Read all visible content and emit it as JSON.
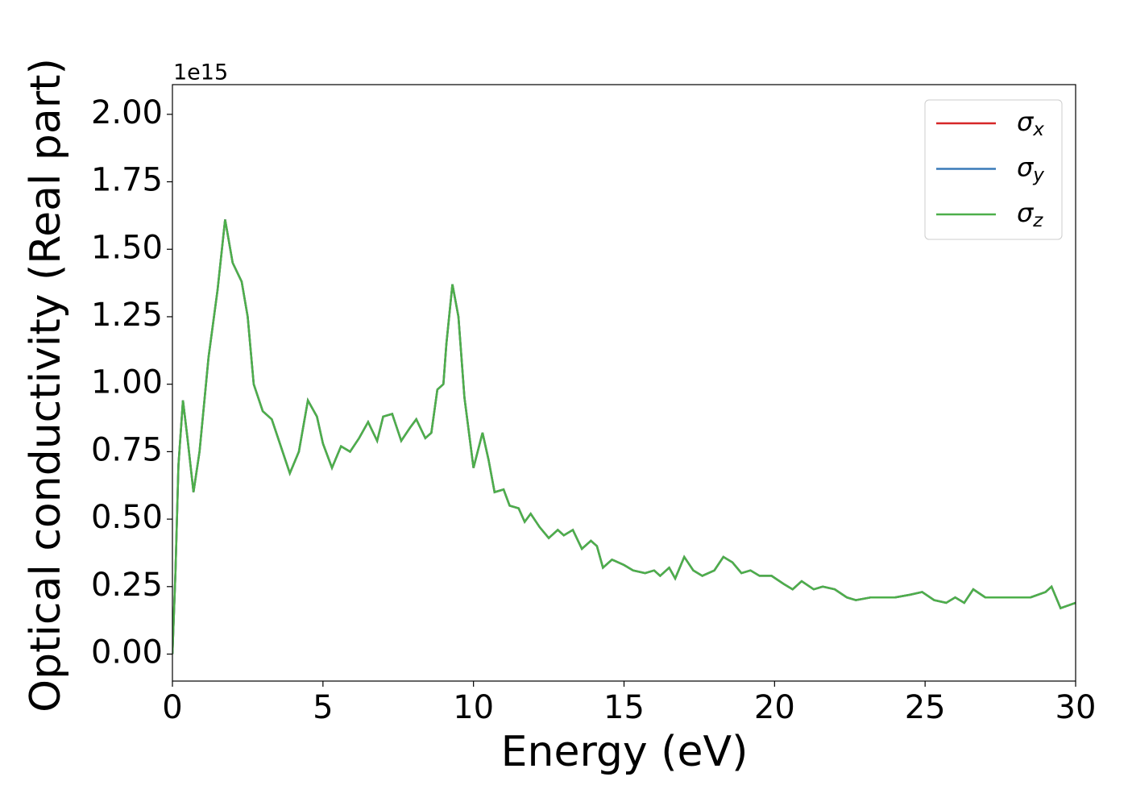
{
  "chart_data": {
    "type": "line",
    "xlabel": "Energy (eV)",
    "ylabel": "Optical conductivity (Real part)",
    "y_offset_label": "1e15",
    "xlim": [
      0,
      30
    ],
    "xticks": [
      0,
      5,
      10,
      15,
      20,
      25,
      30
    ],
    "ylim": [
      -0.1,
      2.11
    ],
    "yticks": [
      {
        "value": 0,
        "label": "0.00"
      },
      {
        "value": 0.25,
        "label": "0.25"
      },
      {
        "value": 0.5,
        "label": "0.50"
      },
      {
        "value": 0.75,
        "label": "0.75"
      },
      {
        "value": 1,
        "label": "1.00"
      },
      {
        "value": 1.25,
        "label": "1.25"
      },
      {
        "value": 1.5,
        "label": "1.50"
      },
      {
        "value": 1.75,
        "label": "1.75"
      },
      {
        "value": 2,
        "label": "2.00"
      }
    ],
    "grid": false,
    "legend": "upper right",
    "x": [
      0,
      0.1,
      0.2,
      0.35,
      0.5,
      0.7,
      0.9,
      1.2,
      1.5,
      1.75,
      2.0,
      2.3,
      2.5,
      2.7,
      3.0,
      3.3,
      3.6,
      3.9,
      4.2,
      4.5,
      4.8,
      5.0,
      5.3,
      5.6,
      5.9,
      6.2,
      6.5,
      6.8,
      7.0,
      7.3,
      7.6,
      7.9,
      8.1,
      8.4,
      8.6,
      8.8,
      9.0,
      9.1,
      9.3,
      9.5,
      9.7,
      10.0,
      10.3,
      10.5,
      10.7,
      11.0,
      11.2,
      11.5,
      11.7,
      11.9,
      12.2,
      12.5,
      12.8,
      13.0,
      13.3,
      13.6,
      13.9,
      14.1,
      14.3,
      14.6,
      15.0,
      15.3,
      15.7,
      16.0,
      16.2,
      16.5,
      16.7,
      17.0,
      17.3,
      17.6,
      18.0,
      18.3,
      18.6,
      18.9,
      19.2,
      19.5,
      19.9,
      20.3,
      20.6,
      20.9,
      21.3,
      21.6,
      22.0,
      22.4,
      22.7,
      23.2,
      23.6,
      24.0,
      24.5,
      24.9,
      25.3,
      25.7,
      26.0,
      26.3,
      26.6,
      27.0,
      27.5,
      28.0,
      28.5,
      29.0,
      29.2,
      29.5,
      30.0
    ],
    "series": [
      {
        "name": "σx",
        "color": "#d62728",
        "values": [
          0,
          0.3,
          0.7,
          0.94,
          0.8,
          0.6,
          0.75,
          1.1,
          1.35,
          1.61,
          1.45,
          1.38,
          1.25,
          1.0,
          0.9,
          0.87,
          0.77,
          0.67,
          0.75,
          0.94,
          0.88,
          0.78,
          0.69,
          0.77,
          0.75,
          0.8,
          0.86,
          0.79,
          0.88,
          0.89,
          0.79,
          0.84,
          0.87,
          0.8,
          0.82,
          0.98,
          1.0,
          1.15,
          1.37,
          1.25,
          0.95,
          0.69,
          0.82,
          0.72,
          0.6,
          0.61,
          0.55,
          0.54,
          0.49,
          0.52,
          0.47,
          0.43,
          0.46,
          0.44,
          0.46,
          0.39,
          0.42,
          0.4,
          0.32,
          0.35,
          0.33,
          0.31,
          0.3,
          0.31,
          0.29,
          0.32,
          0.28,
          0.36,
          0.31,
          0.29,
          0.31,
          0.36,
          0.34,
          0.3,
          0.31,
          0.29,
          0.29,
          0.26,
          0.24,
          0.27,
          0.24,
          0.25,
          0.24,
          0.21,
          0.2,
          0.21,
          0.21,
          0.21,
          0.22,
          0.23,
          0.2,
          0.19,
          0.21,
          0.19,
          0.24,
          0.21,
          0.21,
          0.21,
          0.21,
          0.23,
          0.25,
          0.17,
          0.19
        ]
      },
      {
        "name": "σy",
        "color": "#3a7ab8",
        "values": [
          0,
          0.3,
          0.7,
          0.94,
          0.8,
          0.6,
          0.75,
          1.1,
          1.35,
          1.61,
          1.45,
          1.38,
          1.25,
          1.0,
          0.9,
          0.87,
          0.77,
          0.67,
          0.75,
          0.94,
          0.88,
          0.78,
          0.69,
          0.77,
          0.75,
          0.8,
          0.86,
          0.79,
          0.88,
          0.89,
          0.79,
          0.84,
          0.87,
          0.8,
          0.82,
          0.98,
          1.0,
          1.15,
          1.37,
          1.25,
          0.95,
          0.69,
          0.82,
          0.72,
          0.6,
          0.61,
          0.55,
          0.54,
          0.49,
          0.52,
          0.47,
          0.43,
          0.46,
          0.44,
          0.46,
          0.39,
          0.42,
          0.4,
          0.32,
          0.35,
          0.33,
          0.31,
          0.3,
          0.31,
          0.29,
          0.32,
          0.28,
          0.36,
          0.31,
          0.29,
          0.31,
          0.36,
          0.34,
          0.3,
          0.31,
          0.29,
          0.29,
          0.26,
          0.24,
          0.27,
          0.24,
          0.25,
          0.24,
          0.21,
          0.2,
          0.21,
          0.21,
          0.21,
          0.22,
          0.23,
          0.2,
          0.19,
          0.21,
          0.19,
          0.24,
          0.21,
          0.21,
          0.21,
          0.21,
          0.23,
          0.25,
          0.17,
          0.19
        ]
      },
      {
        "name": "σz",
        "color": "#4daf4a",
        "values": [
          0,
          0.3,
          0.7,
          0.94,
          0.8,
          0.6,
          0.75,
          1.1,
          1.35,
          1.61,
          1.45,
          1.38,
          1.25,
          1.0,
          0.9,
          0.87,
          0.77,
          0.67,
          0.75,
          0.94,
          0.88,
          0.78,
          0.69,
          0.77,
          0.75,
          0.8,
          0.86,
          0.79,
          0.88,
          0.89,
          0.79,
          0.84,
          0.87,
          0.8,
          0.82,
          0.98,
          1.0,
          1.15,
          1.37,
          1.25,
          0.95,
          0.69,
          0.82,
          0.72,
          0.6,
          0.61,
          0.55,
          0.54,
          0.49,
          0.52,
          0.47,
          0.43,
          0.46,
          0.44,
          0.46,
          0.39,
          0.42,
          0.4,
          0.32,
          0.35,
          0.33,
          0.31,
          0.3,
          0.31,
          0.29,
          0.32,
          0.28,
          0.36,
          0.31,
          0.29,
          0.31,
          0.36,
          0.34,
          0.3,
          0.31,
          0.29,
          0.29,
          0.26,
          0.24,
          0.27,
          0.24,
          0.25,
          0.24,
          0.21,
          0.2,
          0.21,
          0.21,
          0.21,
          0.22,
          0.23,
          0.2,
          0.19,
          0.21,
          0.19,
          0.24,
          0.21,
          0.21,
          0.21,
          0.21,
          0.23,
          0.25,
          0.17,
          0.19
        ]
      }
    ]
  }
}
